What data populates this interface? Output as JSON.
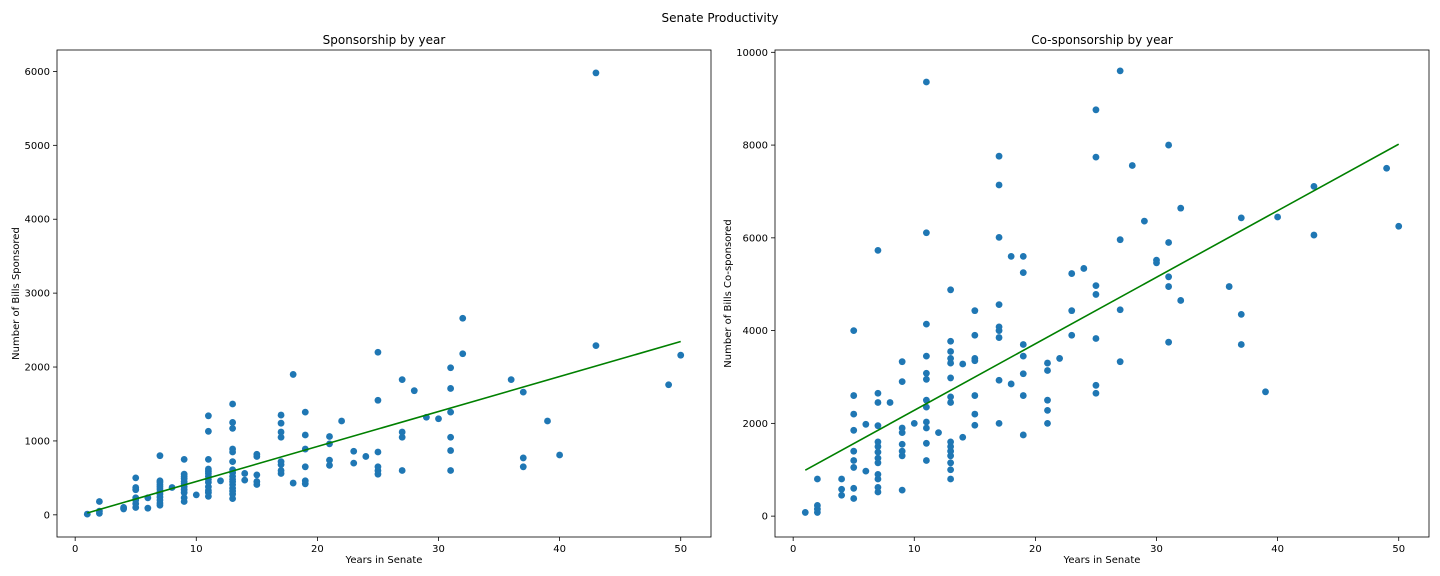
{
  "figure": {
    "suptitle": "Senate Productivity"
  },
  "chart_data": [
    {
      "type": "scatter",
      "title": "Sponsorship by year",
      "xlabel": "Years in Senate",
      "ylabel": "Number of Bills Sponsored",
      "xlim": [
        -1.5,
        52.5
      ],
      "ylim": [
        -300,
        6290
      ],
      "xticks": [
        0,
        10,
        20,
        30,
        40,
        50
      ],
      "yticks": [
        0,
        1000,
        2000,
        3000,
        4000,
        5000,
        6000
      ],
      "grid": false,
      "point_color": "#1f77b4",
      "line_color": "#008000",
      "fit_line": {
        "x": [
          1,
          50
        ],
        "y": [
          25,
          2345
        ]
      },
      "points": [
        [
          1,
          10
        ],
        [
          2,
          20
        ],
        [
          2,
          50
        ],
        [
          2,
          180
        ],
        [
          4,
          80
        ],
        [
          4,
          100
        ],
        [
          5,
          100
        ],
        [
          5,
          150
        ],
        [
          5,
          200
        ],
        [
          5,
          230
        ],
        [
          5,
          340
        ],
        [
          5,
          370
        ],
        [
          5,
          500
        ],
        [
          6,
          90
        ],
        [
          6,
          230
        ],
        [
          7,
          130
        ],
        [
          7,
          160
        ],
        [
          7,
          200
        ],
        [
          7,
          240
        ],
        [
          7,
          280
        ],
        [
          7,
          310
        ],
        [
          7,
          350
        ],
        [
          7,
          380
        ],
        [
          7,
          410
        ],
        [
          7,
          440
        ],
        [
          7,
          460
        ],
        [
          7,
          800
        ],
        [
          8,
          370
        ],
        [
          9,
          180
        ],
        [
          9,
          230
        ],
        [
          9,
          300
        ],
        [
          9,
          340
        ],
        [
          9,
          380
        ],
        [
          9,
          420
        ],
        [
          9,
          450
        ],
        [
          9,
          490
        ],
        [
          9,
          520
        ],
        [
          9,
          550
        ],
        [
          9,
          750
        ],
        [
          10,
          270
        ],
        [
          11,
          250
        ],
        [
          11,
          300
        ],
        [
          11,
          330
        ],
        [
          11,
          380
        ],
        [
          11,
          440
        ],
        [
          11,
          480
        ],
        [
          11,
          520
        ],
        [
          11,
          560
        ],
        [
          11,
          590
        ],
        [
          11,
          620
        ],
        [
          11,
          750
        ],
        [
          11,
          1130
        ],
        [
          11,
          1340
        ],
        [
          12,
          460
        ],
        [
          13,
          220
        ],
        [
          13,
          280
        ],
        [
          13,
          320
        ],
        [
          13,
          360
        ],
        [
          13,
          410
        ],
        [
          13,
          450
        ],
        [
          13,
          480
        ],
        [
          13,
          520
        ],
        [
          13,
          570
        ],
        [
          13,
          610
        ],
        [
          13,
          720
        ],
        [
          13,
          850
        ],
        [
          13,
          890
        ],
        [
          13,
          1170
        ],
        [
          13,
          1250
        ],
        [
          13,
          1500
        ],
        [
          14,
          470
        ],
        [
          14,
          560
        ],
        [
          15,
          410
        ],
        [
          15,
          450
        ],
        [
          15,
          540
        ],
        [
          15,
          790
        ],
        [
          15,
          820
        ],
        [
          17,
          560
        ],
        [
          17,
          600
        ],
        [
          17,
          680
        ],
        [
          17,
          720
        ],
        [
          17,
          1050
        ],
        [
          17,
          1120
        ],
        [
          17,
          1240
        ],
        [
          17,
          1350
        ],
        [
          18,
          430
        ],
        [
          18,
          1900
        ],
        [
          19,
          420
        ],
        [
          19,
          460
        ],
        [
          19,
          650
        ],
        [
          19,
          890
        ],
        [
          19,
          1080
        ],
        [
          19,
          1390
        ],
        [
          21,
          670
        ],
        [
          21,
          740
        ],
        [
          21,
          960
        ],
        [
          21,
          1060
        ],
        [
          22,
          1270
        ],
        [
          23,
          700
        ],
        [
          23,
          860
        ],
        [
          24,
          790
        ],
        [
          25,
          550
        ],
        [
          25,
          600
        ],
        [
          25,
          650
        ],
        [
          25,
          850
        ],
        [
          25,
          1550
        ],
        [
          25,
          2200
        ],
        [
          27,
          600
        ],
        [
          27,
          1050
        ],
        [
          27,
          1120
        ],
        [
          27,
          1830
        ],
        [
          28,
          1680
        ],
        [
          29,
          1320
        ],
        [
          30,
          1300
        ],
        [
          31,
          600
        ],
        [
          31,
          870
        ],
        [
          31,
          1050
        ],
        [
          31,
          1390
        ],
        [
          31,
          1710
        ],
        [
          31,
          1990
        ],
        [
          32,
          2180
        ],
        [
          32,
          2660
        ],
        [
          36,
          1830
        ],
        [
          37,
          650
        ],
        [
          37,
          770
        ],
        [
          37,
          1660
        ],
        [
          39,
          1270
        ],
        [
          40,
          810
        ],
        [
          43,
          2290
        ],
        [
          43,
          5980
        ],
        [
          49,
          1760
        ],
        [
          50,
          2160
        ]
      ]
    },
    {
      "type": "scatter",
      "title": "Co-sponsorship by year",
      "xlabel": "Years in Senate",
      "ylabel": "Number of Bills Co-sponsored",
      "xlim": [
        -1.5,
        52.5
      ],
      "ylim": [
        -450,
        10050
      ],
      "xticks": [
        0,
        10,
        20,
        30,
        40,
        50
      ],
      "yticks": [
        0,
        2000,
        4000,
        6000,
        8000,
        10000
      ],
      "grid": false,
      "point_color": "#1f77b4",
      "line_color": "#008000",
      "fit_line": {
        "x": [
          1,
          50
        ],
        "y": [
          990,
          8020
        ]
      },
      "points": [
        [
          1,
          80
        ],
        [
          2,
          80
        ],
        [
          2,
          150
        ],
        [
          2,
          230
        ],
        [
          2,
          800
        ],
        [
          4,
          450
        ],
        [
          4,
          580
        ],
        [
          4,
          800
        ],
        [
          5,
          380
        ],
        [
          5,
          600
        ],
        [
          5,
          1050
        ],
        [
          5,
          1200
        ],
        [
          5,
          1400
        ],
        [
          5,
          1850
        ],
        [
          5,
          2200
        ],
        [
          5,
          2600
        ],
        [
          5,
          4000
        ],
        [
          6,
          970
        ],
        [
          6,
          1980
        ],
        [
          7,
          520
        ],
        [
          7,
          620
        ],
        [
          7,
          800
        ],
        [
          7,
          900
        ],
        [
          7,
          1150
        ],
        [
          7,
          1250
        ],
        [
          7,
          1380
        ],
        [
          7,
          1500
        ],
        [
          7,
          1600
        ],
        [
          7,
          1950
        ],
        [
          7,
          2450
        ],
        [
          7,
          2650
        ],
        [
          7,
          5730
        ],
        [
          8,
          2450
        ],
        [
          9,
          560
        ],
        [
          9,
          1300
        ],
        [
          9,
          1400
        ],
        [
          9,
          1550
        ],
        [
          9,
          1800
        ],
        [
          9,
          1900
        ],
        [
          9,
          2900
        ],
        [
          9,
          3330
        ],
        [
          10,
          2000
        ],
        [
          11,
          1200
        ],
        [
          11,
          1570
        ],
        [
          11,
          1900
        ],
        [
          11,
          2030
        ],
        [
          11,
          2350
        ],
        [
          11,
          2500
        ],
        [
          11,
          2950
        ],
        [
          11,
          3080
        ],
        [
          11,
          3450
        ],
        [
          11,
          4140
        ],
        [
          11,
          6110
        ],
        [
          11,
          9360
        ],
        [
          12,
          1800
        ],
        [
          13,
          800
        ],
        [
          13,
          1000
        ],
        [
          13,
          1150
        ],
        [
          13,
          1300
        ],
        [
          13,
          1400
        ],
        [
          13,
          1500
        ],
        [
          13,
          1600
        ],
        [
          13,
          2450
        ],
        [
          13,
          2570
        ],
        [
          13,
          2980
        ],
        [
          13,
          3300
        ],
        [
          13,
          3400
        ],
        [
          13,
          3550
        ],
        [
          13,
          3770
        ],
        [
          13,
          4880
        ],
        [
          14,
          1700
        ],
        [
          14,
          3280
        ],
        [
          15,
          1960
        ],
        [
          15,
          2200
        ],
        [
          15,
          2600
        ],
        [
          15,
          3350
        ],
        [
          15,
          3400
        ],
        [
          15,
          3900
        ],
        [
          15,
          4430
        ],
        [
          17,
          2000
        ],
        [
          17,
          2930
        ],
        [
          17,
          3850
        ],
        [
          17,
          4000
        ],
        [
          17,
          4080
        ],
        [
          17,
          4560
        ],
        [
          17,
          6010
        ],
        [
          17,
          7140
        ],
        [
          17,
          7760
        ],
        [
          18,
          2850
        ],
        [
          18,
          5600
        ],
        [
          19,
          1750
        ],
        [
          19,
          2600
        ],
        [
          19,
          3070
        ],
        [
          19,
          3450
        ],
        [
          19,
          3700
        ],
        [
          19,
          5250
        ],
        [
          19,
          5600
        ],
        [
          21,
          2000
        ],
        [
          21,
          2280
        ],
        [
          21,
          2500
        ],
        [
          21,
          3140
        ],
        [
          21,
          3300
        ],
        [
          22,
          3400
        ],
        [
          23,
          3900
        ],
        [
          23,
          4430
        ],
        [
          23,
          5230
        ],
        [
          24,
          5340
        ],
        [
          25,
          2650
        ],
        [
          25,
          2820
        ],
        [
          25,
          3830
        ],
        [
          25,
          4780
        ],
        [
          25,
          4970
        ],
        [
          25,
          7740
        ],
        [
          25,
          8760
        ],
        [
          27,
          3330
        ],
        [
          27,
          4450
        ],
        [
          27,
          5960
        ],
        [
          27,
          9600
        ],
        [
          28,
          7560
        ],
        [
          29,
          6360
        ],
        [
          30,
          5460
        ],
        [
          30,
          5520
        ],
        [
          31,
          3750
        ],
        [
          31,
          4950
        ],
        [
          31,
          5160
        ],
        [
          31,
          5900
        ],
        [
          31,
          8000
        ],
        [
          32,
          4650
        ],
        [
          32,
          6640
        ],
        [
          36,
          4950
        ],
        [
          37,
          3700
        ],
        [
          37,
          4350
        ],
        [
          37,
          6430
        ],
        [
          39,
          2680
        ],
        [
          40,
          6450
        ],
        [
          43,
          6060
        ],
        [
          43,
          7110
        ],
        [
          49,
          7500
        ],
        [
          50,
          6250
        ]
      ]
    }
  ]
}
